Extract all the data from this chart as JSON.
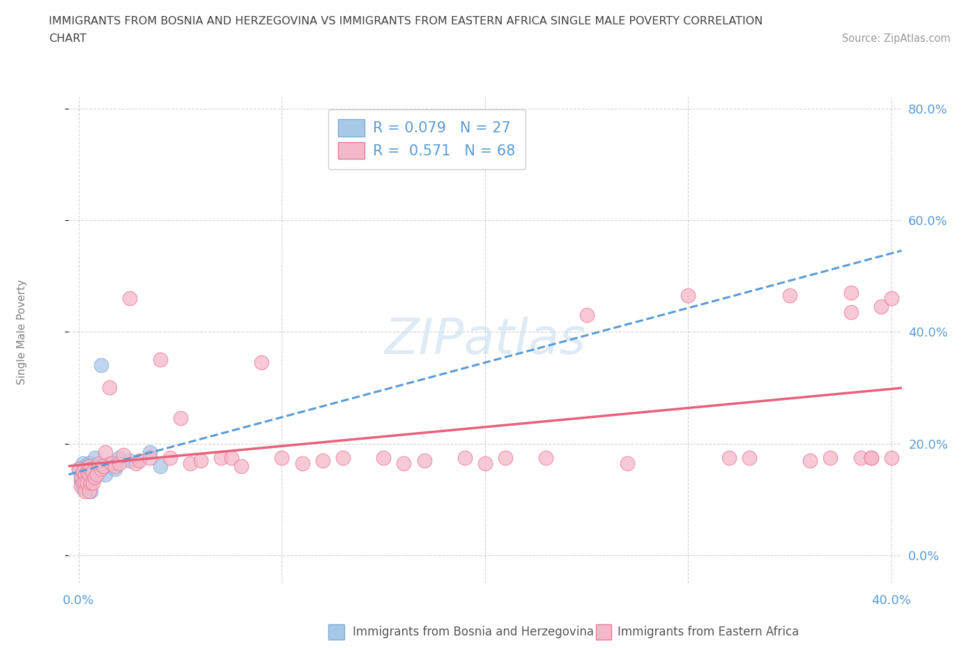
{
  "title_line1": "IMMIGRANTS FROM BOSNIA AND HERZEGOVINA VS IMMIGRANTS FROM EASTERN AFRICA SINGLE MALE POVERTY CORRELATION",
  "title_line2": "CHART",
  "source_text": "Source: ZipAtlas.com",
  "ylabel_label": "Single Male Poverty",
  "bosnia_color": "#a8c8e8",
  "bosnia_edge_color": "#7bafd4",
  "africa_color": "#f5b8c8",
  "africa_edge_color": "#e87898",
  "bosnia_line_color": "#5b9bd5",
  "africa_line_color": "#e8607a",
  "grid_color": "#c8c8c8",
  "watermark_color": "#c8dff0",
  "legend_R1": "R = 0.079",
  "legend_N1": "N = 27",
  "legend_R2": "R =  0.571",
  "legend_N2": "N = 68",
  "axis_label_color": "#5b9bd5",
  "title_color": "#404040",
  "ylabel_color": "#808080",
  "xlim": [
    -0.005,
    0.405
  ],
  "ylim": [
    -0.05,
    0.82
  ],
  "bosnia_x": [
    0.0,
    0.001,
    0.001,
    0.002,
    0.002,
    0.002,
    0.003,
    0.003,
    0.004,
    0.004,
    0.005,
    0.005,
    0.006,
    0.006,
    0.007,
    0.007,
    0.008,
    0.009,
    0.01,
    0.011,
    0.013,
    0.015,
    0.018,
    0.02,
    0.025,
    0.035,
    0.04
  ],
  "bosnia_y": [
    0.155,
    0.145,
    0.135,
    0.165,
    0.13,
    0.12,
    0.16,
    0.15,
    0.155,
    0.125,
    0.165,
    0.14,
    0.15,
    0.115,
    0.155,
    0.14,
    0.175,
    0.16,
    0.155,
    0.34,
    0.145,
    0.165,
    0.155,
    0.175,
    0.17,
    0.185,
    0.16
  ],
  "africa_x": [
    0.0,
    0.001,
    0.001,
    0.002,
    0.002,
    0.003,
    0.003,
    0.003,
    0.004,
    0.004,
    0.005,
    0.005,
    0.005,
    0.006,
    0.006,
    0.007,
    0.007,
    0.008,
    0.009,
    0.01,
    0.011,
    0.012,
    0.013,
    0.015,
    0.016,
    0.018,
    0.02,
    0.022,
    0.025,
    0.028,
    0.03,
    0.035,
    0.04,
    0.045,
    0.05,
    0.055,
    0.06,
    0.07,
    0.075,
    0.08,
    0.09,
    0.1,
    0.11,
    0.12,
    0.13,
    0.15,
    0.16,
    0.17,
    0.19,
    0.2,
    0.21,
    0.23,
    0.25,
    0.27,
    0.3,
    0.32,
    0.33,
    0.35,
    0.36,
    0.37,
    0.38,
    0.385,
    0.39,
    0.395,
    0.4,
    0.4,
    0.39,
    0.38
  ],
  "africa_y": [
    0.155,
    0.14,
    0.125,
    0.15,
    0.13,
    0.145,
    0.13,
    0.115,
    0.15,
    0.13,
    0.16,
    0.145,
    0.115,
    0.155,
    0.13,
    0.15,
    0.13,
    0.14,
    0.145,
    0.165,
    0.155,
    0.16,
    0.185,
    0.3,
    0.165,
    0.16,
    0.165,
    0.18,
    0.46,
    0.165,
    0.17,
    0.175,
    0.35,
    0.175,
    0.245,
    0.165,
    0.17,
    0.175,
    0.175,
    0.16,
    0.345,
    0.175,
    0.165,
    0.17,
    0.175,
    0.175,
    0.165,
    0.17,
    0.175,
    0.165,
    0.175,
    0.175,
    0.43,
    0.165,
    0.465,
    0.175,
    0.175,
    0.465,
    0.17,
    0.175,
    0.47,
    0.175,
    0.175,
    0.445,
    0.46,
    0.175,
    0.175,
    0.435
  ]
}
